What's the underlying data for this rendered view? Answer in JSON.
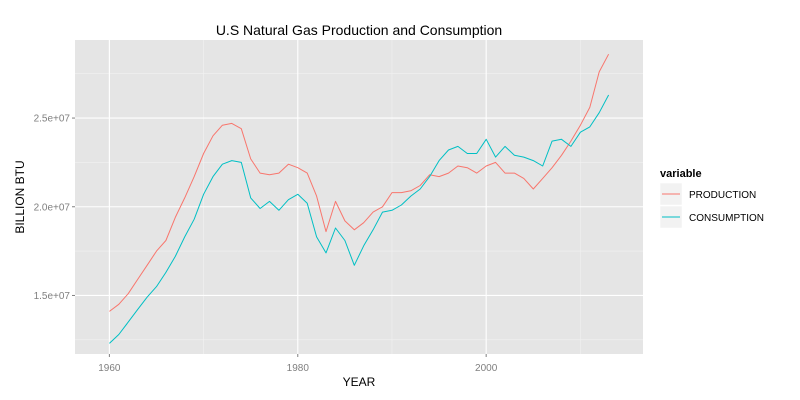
{
  "chart_data": {
    "type": "line",
    "title": "U.S Natural Gas Production and Consumption",
    "xlabel": "YEAR",
    "ylabel": "BILLION BTU",
    "xlim": [
      1956.35,
      2016.65
    ],
    "ylim": [
      11700000,
      29400000
    ],
    "x_ticks": [
      1960,
      1980,
      2000
    ],
    "x_minor_ticks": [
      1970,
      1990,
      2010
    ],
    "x_tick_labels": [
      "1960",
      "1980",
      "2000"
    ],
    "y_ticks": [
      15000000,
      20000000,
      25000000
    ],
    "y_minor_ticks": [
      12500000,
      17500000,
      22500000,
      27500000
    ],
    "y_tick_labels": [
      "1.5e+07",
      "2.0e+07",
      "2.5e+07"
    ],
    "grid": true,
    "legend": {
      "title": "variable",
      "position": "right"
    },
    "x": [
      1960,
      1961,
      1962,
      1963,
      1964,
      1965,
      1966,
      1967,
      1968,
      1969,
      1970,
      1971,
      1972,
      1973,
      1974,
      1975,
      1976,
      1977,
      1978,
      1979,
      1980,
      1981,
      1982,
      1983,
      1984,
      1985,
      1986,
      1987,
      1988,
      1989,
      1990,
      1991,
      1992,
      1993,
      1994,
      1995,
      1996,
      1997,
      1998,
      1999,
      2000,
      2001,
      2002,
      2003,
      2004,
      2005,
      2006,
      2007,
      2008,
      2009,
      2010,
      2011,
      2012,
      2013
    ],
    "series": [
      {
        "name": "PRODUCTION",
        "color": "#f8766d",
        "values": [
          14100000,
          14500000,
          15100000,
          15900000,
          16700000,
          17500000,
          18100000,
          19400000,
          20500000,
          21700000,
          23000000,
          24000000,
          24600000,
          24700000,
          24400000,
          22700000,
          21900000,
          21800000,
          21900000,
          22400000,
          22200000,
          21900000,
          20600000,
          18600000,
          20300000,
          19200000,
          18700000,
          19100000,
          19700000,
          20000000,
          20800000,
          20800000,
          20900000,
          21200000,
          21800000,
          21700000,
          21900000,
          22300000,
          22200000,
          21900000,
          22300000,
          22500000,
          21900000,
          21900000,
          21600000,
          21000000,
          21600000,
          22200000,
          22900000,
          23700000,
          24600000,
          25600000,
          27600000,
          28600000
        ]
      },
      {
        "name": "CONSUMPTION",
        "color": "#00bfc4",
        "values": [
          12300000,
          12800000,
          13500000,
          14200000,
          14900000,
          15500000,
          16300000,
          17200000,
          18300000,
          19300000,
          20700000,
          21700000,
          22400000,
          22600000,
          22500000,
          20500000,
          19900000,
          20300000,
          19800000,
          20400000,
          20700000,
          20200000,
          18300000,
          17400000,
          18800000,
          18100000,
          16700000,
          17800000,
          18700000,
          19700000,
          19800000,
          20100000,
          20600000,
          21000000,
          21700000,
          22600000,
          23200000,
          23400000,
          23000000,
          23000000,
          23800000,
          22800000,
          23400000,
          22900000,
          22800000,
          22600000,
          22300000,
          23700000,
          23800000,
          23400000,
          24200000,
          24500000,
          25300000,
          26300000
        ]
      }
    ]
  }
}
